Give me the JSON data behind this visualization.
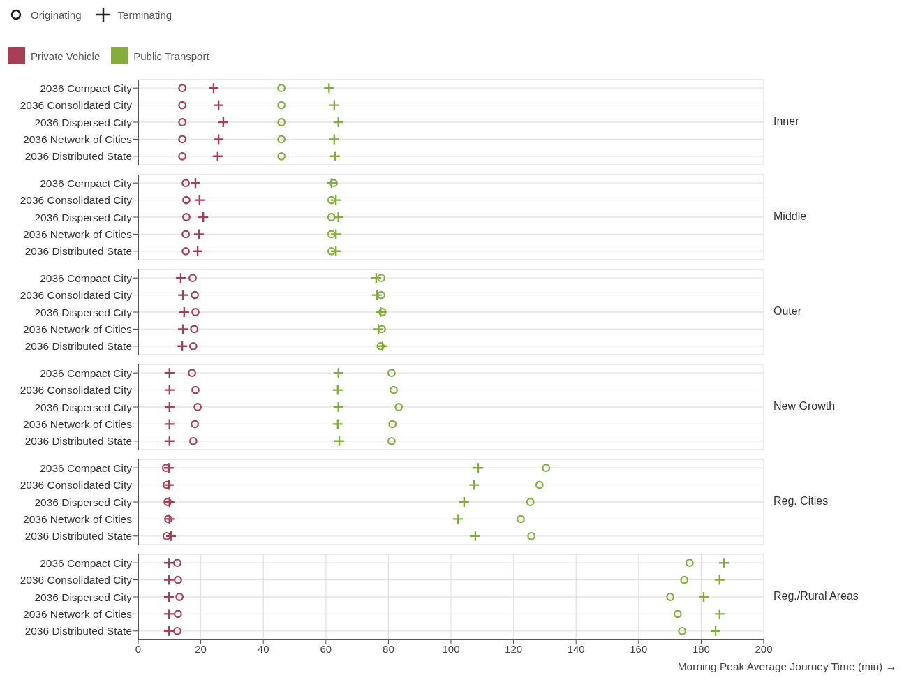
{
  "chart_data": [
    {
      "type": "scatter",
      "orientation": "horizontal",
      "y2label": "Inner",
      "legend": "top left",
      "annotations": [
        "Originating",
        "Terminating"
      ],
      "categories": [
        "2036 Compact City",
        "2036 Consolidated City",
        "2036 Dispersed City",
        "2036 Network of Cities",
        "2036 Distributed State"
      ],
      "xlim": [
        0,
        200
      ],
      "xticks": [
        0,
        20,
        40,
        60,
        80,
        100,
        120,
        140,
        160,
        180,
        200
      ],
      "grid": true,
      "tick_labels": "y",
      "series": [
        {
          "name": "Private Vehicle",
          "color": "#a63f55",
          "marker": "circle",
          "values": [
            14.1,
            14.1,
            14.1,
            14.1,
            14.1
          ]
        },
        {
          "color": "#a63f55",
          "marker": "cross",
          "values": [
            24.1,
            25.7,
            27.2,
            25.7,
            25.4
          ]
        },
        {
          "name": "Public Transport",
          "color": "#84ad3d",
          "marker": "circle",
          "values": [
            45.8,
            45.8,
            45.8,
            45.8,
            45.8
          ]
        },
        {
          "color": "#84ad3d",
          "marker": "cross",
          "values": [
            61,
            62.7,
            64,
            62.7,
            62.9
          ]
        }
      ]
    },
    {
      "type": "scatter",
      "orientation": "horizontal",
      "y2label": "Middle",
      "categories": [
        "2036 Compact City",
        "2036 Consolidated City",
        "2036 Dispersed City",
        "2036 Network of Cities",
        "2036 Distributed State"
      ],
      "xlim": [
        0,
        200
      ],
      "xticks": [
        0,
        20,
        40,
        60,
        80,
        100,
        120,
        140,
        160,
        180,
        200
      ],
      "grid": true,
      "tick_labels": "y",
      "series": [
        {
          "color": "#a63f55",
          "marker": "circle",
          "values": [
            15.2,
            15.4,
            15.4,
            15.2,
            15.2
          ]
        },
        {
          "color": "#a63f55",
          "marker": "cross",
          "values": [
            18.3,
            19.6,
            20.8,
            19.4,
            19
          ]
        },
        {
          "color": "#84ad3d",
          "marker": "circle",
          "values": [
            62.5,
            61.8,
            61.8,
            61.8,
            61.8
          ]
        },
        {
          "color": "#84ad3d",
          "marker": "cross",
          "values": [
            61.8,
            63.2,
            64,
            63.2,
            63.2
          ]
        }
      ]
    },
    {
      "type": "scatter",
      "orientation": "horizontal",
      "y2label": "Outer",
      "categories": [
        "2036 Compact City",
        "2036 Consolidated City",
        "2036 Dispersed City",
        "2036 Network of Cities",
        "2036 Distributed State"
      ],
      "xlim": [
        0,
        200
      ],
      "xticks": [
        0,
        20,
        40,
        60,
        80,
        100,
        120,
        140,
        160,
        180,
        200
      ],
      "grid": true,
      "tick_labels": "y",
      "series": [
        {
          "color": "#a63f55",
          "marker": "circle",
          "values": [
            17.4,
            18.1,
            18.3,
            17.9,
            17.6
          ]
        },
        {
          "color": "#a63f55",
          "marker": "cross",
          "values": [
            13.6,
            14.3,
            14.7,
            14.3,
            14.1
          ]
        },
        {
          "color": "#84ad3d",
          "marker": "circle",
          "values": [
            77.7,
            77.7,
            78.1,
            77.9,
            77.5
          ]
        },
        {
          "color": "#84ad3d",
          "marker": "cross",
          "values": [
            76.1,
            76.3,
            77.5,
            76.8,
            78.1
          ]
        }
      ]
    },
    {
      "type": "scatter",
      "orientation": "horizontal",
      "y2label": "New Growth",
      "categories": [
        "2036 Compact City",
        "2036 Consolidated City",
        "2036 Dispersed City",
        "2036 Network of Cities",
        "2036 Distributed State"
      ],
      "xlim": [
        0,
        200
      ],
      "xticks": [
        0,
        20,
        40,
        60,
        80,
        100,
        120,
        140,
        160,
        180,
        200
      ],
      "grid": true,
      "tick_labels": "y",
      "series": [
        {
          "color": "#a63f55",
          "marker": "circle",
          "values": [
            17.2,
            18.3,
            19,
            18.1,
            17.6
          ]
        },
        {
          "color": "#a63f55",
          "marker": "cross",
          "values": [
            10,
            10,
            10,
            10,
            10
          ]
        },
        {
          "color": "#84ad3d",
          "marker": "circle",
          "values": [
            81,
            81.7,
            83.3,
            81.3,
            81
          ]
        },
        {
          "color": "#84ad3d",
          "marker": "cross",
          "values": [
            64,
            63.8,
            64,
            63.8,
            64.3
          ]
        }
      ]
    },
    {
      "type": "scatter",
      "orientation": "horizontal",
      "y2label": "Reg. Cities",
      "categories": [
        "2036 Compact City",
        "2036 Consolidated City",
        "2036 Dispersed City",
        "2036 Network of Cities",
        "2036 Distributed State"
      ],
      "xlim": [
        0,
        200
      ],
      "xticks": [
        0,
        20,
        40,
        60,
        80,
        100,
        120,
        140,
        160,
        180,
        200
      ],
      "grid": true,
      "tick_labels": "y",
      "series": [
        {
          "color": "#a63f55",
          "marker": "circle",
          "values": [
            8.9,
            9.1,
            9.4,
            9.6,
            9.1
          ]
        },
        {
          "color": "#a63f55",
          "marker": "cross",
          "values": [
            9.8,
            9.8,
            10,
            10,
            10.5
          ]
        },
        {
          "color": "#84ad3d",
          "marker": "circle",
          "values": [
            130.4,
            128.3,
            125.4,
            122.3,
            125.7
          ]
        },
        {
          "color": "#84ad3d",
          "marker": "cross",
          "values": [
            108.7,
            107.4,
            104.2,
            102.2,
            107.8
          ]
        }
      ]
    },
    {
      "type": "scatter",
      "orientation": "horizontal",
      "y2label": "Reg./Rural Areas",
      "xlabel": "Morning Peak Average Journey Time (min) →",
      "categories": [
        "2036 Compact City",
        "2036 Consolidated City",
        "2036 Dispersed City",
        "2036 Network of Cities",
        "2036 Distributed State"
      ],
      "xlim": [
        0,
        200
      ],
      "xticks": [
        0,
        20,
        40,
        60,
        80,
        100,
        120,
        140,
        160,
        180,
        200
      ],
      "grid": true,
      "series": [
        {
          "color": "#a63f55",
          "marker": "circle",
          "values": [
            12.5,
            12.7,
            13.2,
            12.7,
            12.5
          ]
        },
        {
          "color": "#a63f55",
          "marker": "cross",
          "values": [
            9.8,
            9.8,
            9.8,
            9.8,
            9.8
          ]
        },
        {
          "color": "#84ad3d",
          "marker": "circle",
          "values": [
            176.3,
            174.6,
            170.1,
            172.5,
            173.9
          ]
        },
        {
          "color": "#84ad3d",
          "marker": "cross",
          "values": [
            187.3,
            185.9,
            180.8,
            185.9,
            184.6
          ]
        }
      ]
    }
  ]
}
